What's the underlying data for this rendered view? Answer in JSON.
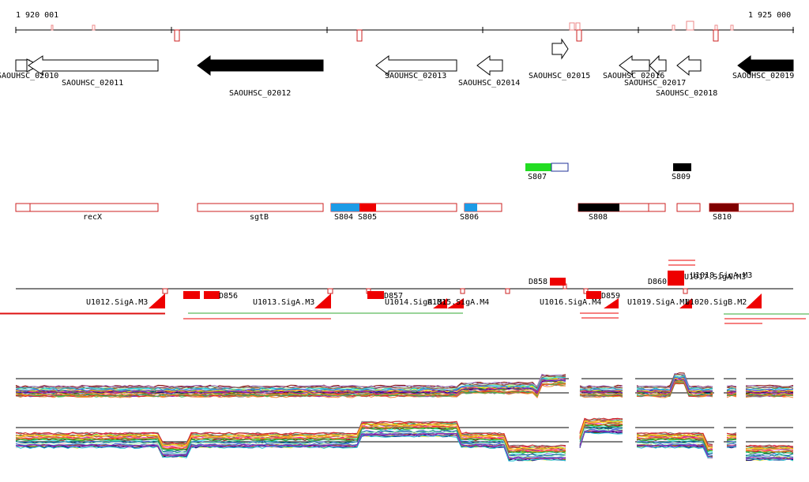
{
  "ruler": {
    "start_label": "1 920 001",
    "end_label": "1 925 000"
  },
  "genes": [
    {
      "label": "SAOUHSC_02010",
      "fill": "outline"
    },
    {
      "label": "SAOUHSC_02011",
      "fill": "outline"
    },
    {
      "label": "SAOUHSC_02012",
      "fill": "solid"
    },
    {
      "label": "SAOUHSC_02013",
      "fill": "outline"
    },
    {
      "label": "SAOUHSC_02014",
      "fill": "outline"
    },
    {
      "label": "SAOUHSC_02015",
      "fill": "outline"
    },
    {
      "label": "SAOUHSC_02016",
      "fill": "outline"
    },
    {
      "label": "SAOUHSC_02017",
      "fill": "outline"
    },
    {
      "label": "SAOUHSC_02018",
      "fill": "outline"
    },
    {
      "label": "SAOUHSC_02019",
      "fill": "solid"
    }
  ],
  "segments": [
    {
      "label": "S807",
      "color": "#22dd22"
    },
    {
      "label": "S809",
      "color": "#000000"
    }
  ],
  "annotations": [
    {
      "label": "recX"
    },
    {
      "label": "sgtB"
    },
    {
      "label": "S804",
      "color": "#1e9be6"
    },
    {
      "label": "S805",
      "color": "#ee0000"
    },
    {
      "label": "S806",
      "color": "#1e9be6"
    },
    {
      "label": "S808",
      "color": "#000000"
    },
    {
      "label": "S810",
      "color": "#800000"
    }
  ],
  "tss": [
    {
      "label": "U1012.SigA.M3"
    },
    {
      "label": "U1013.SigA.M3"
    },
    {
      "label": "U1014.SigA.M1"
    },
    {
      "label": "U1015.SigA.M4"
    },
    {
      "label": "U1016.SigA.M4"
    },
    {
      "label": "U1019.SigA.M1"
    },
    {
      "label": "U1020.SigB.M2"
    },
    {
      "label": "U1017.SigA.M3"
    },
    {
      "label": "U1018.SigA.M3"
    }
  ],
  "dfeatures": [
    {
      "label": "D856"
    },
    {
      "label": "D857"
    },
    {
      "label": "D858"
    },
    {
      "label": "D859"
    },
    {
      "label": "D860"
    }
  ],
  "colors": {
    "accent": "#cc0000",
    "outline_red": "#cc2222",
    "green": "#33aa33"
  }
}
